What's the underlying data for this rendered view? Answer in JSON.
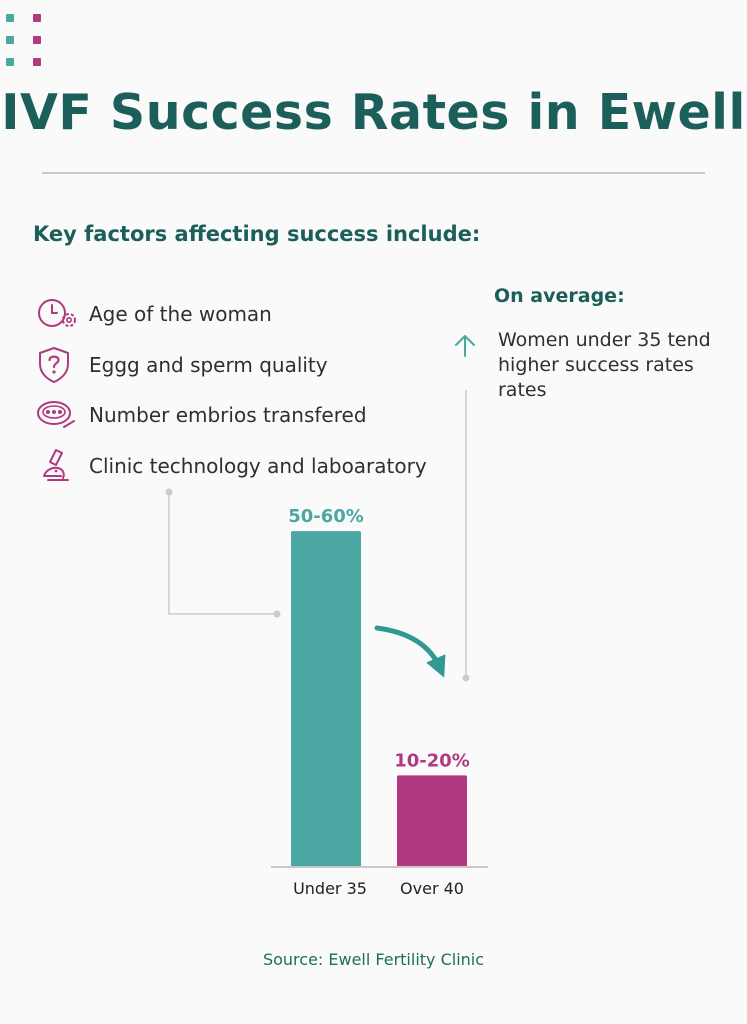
{
  "title": "IVF Success Rates in Ewell",
  "subtitle": "Key factors affecting success include:",
  "factors": [
    {
      "label": "Age of the woman",
      "icon": "clock-gear-icon"
    },
    {
      "label": "Eggg and sperm quality",
      "icon": "shield-question-icon"
    },
    {
      "label": "Number embrios transfered",
      "icon": "petri-dish-icon"
    },
    {
      "label": "Clinic technology and laboaratory",
      "icon": "microscope-icon"
    }
  ],
  "average": {
    "heading": "On average:",
    "lines": [
      "Women under 35 tend",
      "higher success rates",
      "rates"
    ],
    "icon": "arrow-up-icon"
  },
  "chart_data": {
    "type": "bar",
    "categories": [
      "Under 35",
      "Over 40"
    ],
    "values": [
      55,
      15
    ],
    "data_labels": [
      "50-60%",
      "10-20%"
    ],
    "colors": [
      "#4aa7a1",
      "#b0397f"
    ],
    "ylim": [
      0,
      65
    ],
    "grid": false,
    "legend": "none",
    "annotations": [
      "curved-arrow-down"
    ]
  },
  "source": "Source: Ewell Fertility Clinic",
  "colors": {
    "teal_dark": "#1c5e5a",
    "teal": "#4aa7a1",
    "magenta": "#b0397f",
    "connector": "#c8c8c8"
  }
}
